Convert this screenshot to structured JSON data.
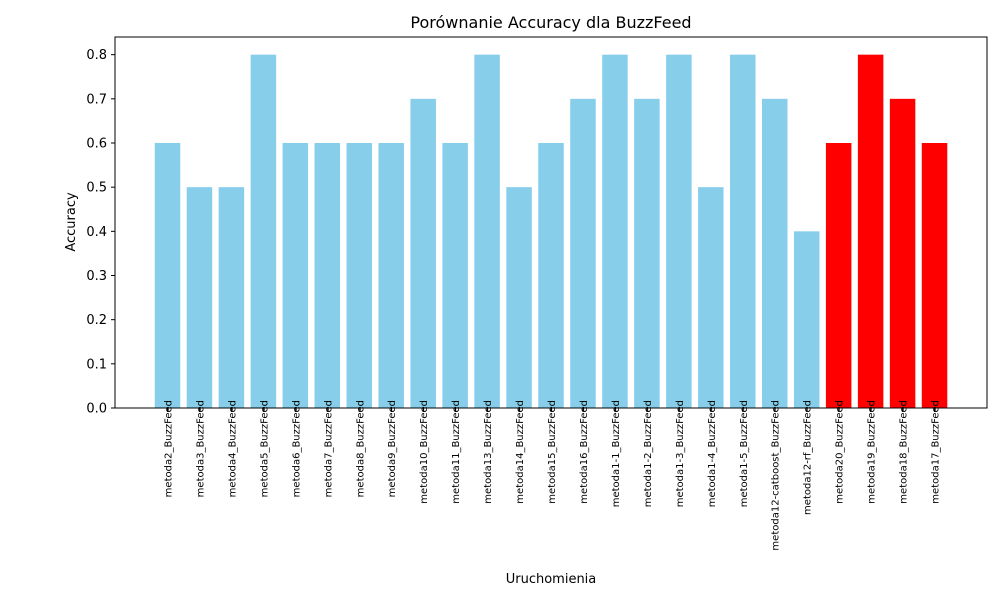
{
  "chart_data": {
    "type": "bar",
    "title": "Porównanie Accuracy dla BuzzFeed",
    "xlabel": "Uruchomienia",
    "ylabel": "Accuracy",
    "ylim": [
      0,
      0.84
    ],
    "yticks": [
      "0.0",
      "0.1",
      "0.2",
      "0.3",
      "0.4",
      "0.5",
      "0.6",
      "0.7",
      "0.8"
    ],
    "grid": false,
    "categories": [
      "metoda2_BuzzFeed",
      "metoda3_BuzzFeed",
      "metoda4_BuzzFeed",
      "metoda5_BuzzFeed",
      "metoda6_BuzzFeed",
      "metoda7_BuzzFeed",
      "metoda8_BuzzFeed",
      "metoda9_BuzzFeed",
      "metoda10_BuzzFeed",
      "metoda11_BuzzFeed",
      "metoda13_BuzzFeed",
      "metoda14_BuzzFeed",
      "metoda15_BuzzFeed",
      "metoda16_BuzzFeed",
      "metoda1-1_BuzzFeed",
      "metoda1-2_BuzzFeed",
      "metoda1-3_BuzzFeed",
      "metoda1-4_BuzzFeed",
      "metoda1-5_BuzzFeed",
      "metoda12-catboost_BuzzFeed",
      "metoda12-rf_BuzzFeed",
      "metoda20_BuzzFeed",
      "metoda19_BuzzFeed",
      "metoda18_BuzzFeed",
      "metoda17_BuzzFeed"
    ],
    "values": [
      0.6,
      0.5,
      0.5,
      0.8,
      0.6,
      0.6,
      0.6,
      0.6,
      0.7,
      0.6,
      0.8,
      0.5,
      0.6,
      0.7,
      0.8,
      0.7,
      0.8,
      0.5,
      0.8,
      0.7,
      0.4,
      0.6,
      0.8,
      0.7,
      0.6
    ],
    "colors": {
      "default": "#87CEEB",
      "highlight": "#FF0000"
    },
    "highlighted": [
      "metoda20_BuzzFeed",
      "metoda19_BuzzFeed",
      "metoda18_BuzzFeed",
      "metoda17_BuzzFeed"
    ]
  }
}
